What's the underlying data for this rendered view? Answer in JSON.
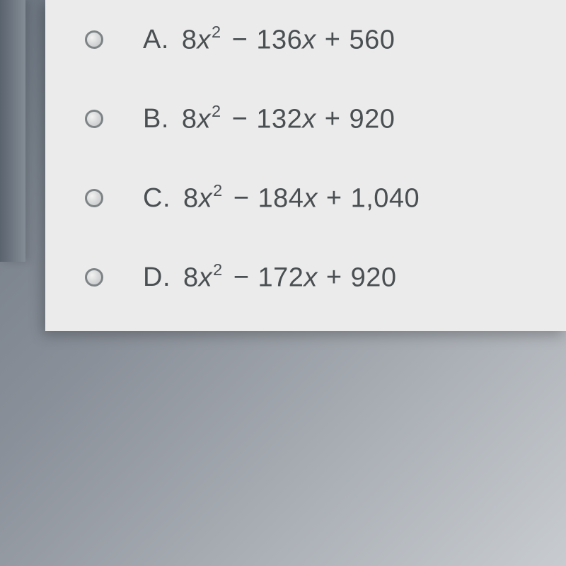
{
  "card_bg": "#ebebeb",
  "body_bg_from": "#6b7580",
  "body_bg_to": "#c8ccd0",
  "text_color": "#4a4f52",
  "radio_border": "#7e8486",
  "options": [
    {
      "letter": "A.",
      "coef_a": "8",
      "var_a": "x",
      "exp_a": "2",
      "op1": "−",
      "coef_b": "136",
      "var_b": "x",
      "op2": "+",
      "const_c": "560"
    },
    {
      "letter": "B.",
      "coef_a": "8",
      "var_a": "x",
      "exp_a": "2",
      "op1": "−",
      "coef_b": "132",
      "var_b": "x",
      "op2": "+",
      "const_c": "920"
    },
    {
      "letter": "C.",
      "coef_a": "8",
      "var_a": "x",
      "exp_a": "2",
      "op1": "−",
      "coef_b": "184",
      "var_b": "x",
      "op2": "+",
      "const_c": "1,040"
    },
    {
      "letter": "D.",
      "coef_a": "8",
      "var_a": "x",
      "exp_a": "2",
      "op1": "−",
      "coef_b": "172",
      "var_b": "x",
      "op2": "+",
      "const_c": "920"
    }
  ]
}
